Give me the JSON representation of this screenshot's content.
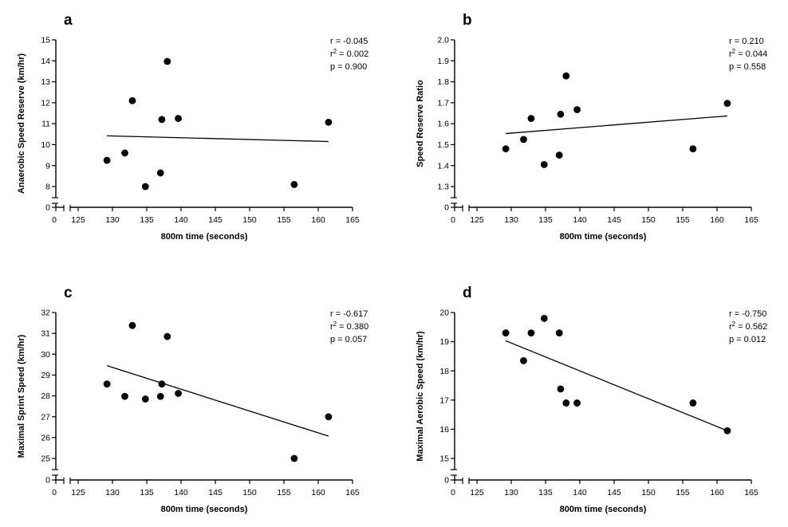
{
  "chart_data": [
    {
      "type": "scatter",
      "panel": "a",
      "xlabel": "800m time (seconds)",
      "ylabel": "Anaerobic Speed Reserve (km/hr)",
      "xlim": [
        125,
        165
      ],
      "xticks": [
        "0",
        "125",
        "130",
        "135",
        "140",
        "145",
        "150",
        "155",
        "160",
        "165"
      ],
      "ylim": [
        8,
        15
      ],
      "yticks": [
        "8",
        "9",
        "10",
        "11",
        "12",
        "13",
        "14",
        "15"
      ],
      "ybreak_label": "0",
      "points": [
        [
          129.2,
          9.25
        ],
        [
          131.8,
          9.6
        ],
        [
          132.9,
          12.1
        ],
        [
          134.8,
          8.0
        ],
        [
          137.0,
          8.65
        ],
        [
          137.2,
          11.2
        ],
        [
          138.0,
          13.97
        ],
        [
          139.6,
          11.25
        ],
        [
          156.5,
          8.1
        ],
        [
          161.5,
          11.07
        ]
      ],
      "fit_line": [
        [
          129.2,
          10.42
        ],
        [
          161.5,
          10.15
        ]
      ],
      "stats": [
        "r = -0.045",
        "r",
        "2",
        " = 0.002",
        "p = 0.900"
      ]
    },
    {
      "type": "scatter",
      "panel": "b",
      "xlabel": "800m time (seconds)",
      "ylabel": "Speed Reserve Ratio",
      "xlim": [
        125,
        165
      ],
      "xticks": [
        "0",
        "125",
        "130",
        "135",
        "140",
        "145",
        "150",
        "155",
        "160",
        "165"
      ],
      "ylim": [
        1.3,
        2.0
      ],
      "yticks": [
        "1.3",
        "1.4",
        "1.5",
        "1.6",
        "1.7",
        "1.8",
        "1.9",
        "2.0"
      ],
      "ybreak_label": "0",
      "points": [
        [
          129.2,
          1.48
        ],
        [
          131.8,
          1.525
        ],
        [
          132.9,
          1.625
        ],
        [
          134.8,
          1.405
        ],
        [
          137.0,
          1.45
        ],
        [
          137.2,
          1.645
        ],
        [
          138.0,
          1.828
        ],
        [
          139.6,
          1.667
        ],
        [
          156.5,
          1.48
        ],
        [
          161.5,
          1.697
        ]
      ],
      "fit_line": [
        [
          129.2,
          1.553
        ],
        [
          161.5,
          1.637
        ]
      ],
      "stats": [
        "r = 0.210",
        "r",
        "2",
        " = 0.044",
        "p = 0.558"
      ]
    },
    {
      "type": "scatter",
      "panel": "c",
      "xlabel": "800m time (seconds)",
      "ylabel": "Maximal Sprint Speed (km/hr)",
      "xlim": [
        125,
        165
      ],
      "xticks": [
        "0",
        "125",
        "130",
        "135",
        "140",
        "145",
        "150",
        "155",
        "160",
        "165"
      ],
      "ylim": [
        25,
        32
      ],
      "yticks": [
        "25",
        "26",
        "27",
        "28",
        "29",
        "30",
        "31",
        "32"
      ],
      "ybreak_label": "0",
      "points": [
        [
          129.2,
          28.57
        ],
        [
          131.8,
          27.98
        ],
        [
          132.9,
          31.38
        ],
        [
          134.8,
          27.85
        ],
        [
          137.0,
          27.98
        ],
        [
          137.2,
          28.57
        ],
        [
          138.0,
          30.85
        ],
        [
          139.6,
          28.12
        ],
        [
          156.5,
          25.0
        ],
        [
          161.5,
          27.0
        ]
      ],
      "fit_line": [
        [
          129.2,
          29.45
        ],
        [
          161.5,
          26.07
        ]
      ],
      "stats": [
        "r = -0.617",
        "r",
        "2",
        " = 0.380",
        "p = 0.057"
      ]
    },
    {
      "type": "scatter",
      "panel": "d",
      "xlabel": "800m time (seconds)",
      "ylabel": "Maximal Aerobic Speed (km/hr)",
      "xlim": [
        125,
        165
      ],
      "xticks": [
        "0",
        "125",
        "130",
        "135",
        "140",
        "145",
        "150",
        "155",
        "160",
        "165"
      ],
      "ylim": [
        15,
        20
      ],
      "yticks": [
        "15",
        "16",
        "17",
        "18",
        "19",
        "20"
      ],
      "ybreak_label": "0",
      "points": [
        [
          129.2,
          19.3
        ],
        [
          131.8,
          18.35
        ],
        [
          132.9,
          19.3
        ],
        [
          134.8,
          19.8
        ],
        [
          137.0,
          19.3
        ],
        [
          137.2,
          17.38
        ],
        [
          138.0,
          16.9
        ],
        [
          139.6,
          16.9
        ],
        [
          156.5,
          16.9
        ],
        [
          161.5,
          15.95
        ]
      ],
      "fit_line": [
        [
          129.2,
          19.03
        ],
        [
          161.5,
          15.95
        ]
      ],
      "stats": [
        "r = -0.750",
        "r",
        "2",
        " = 0.562",
        "p = 0.012"
      ]
    }
  ]
}
